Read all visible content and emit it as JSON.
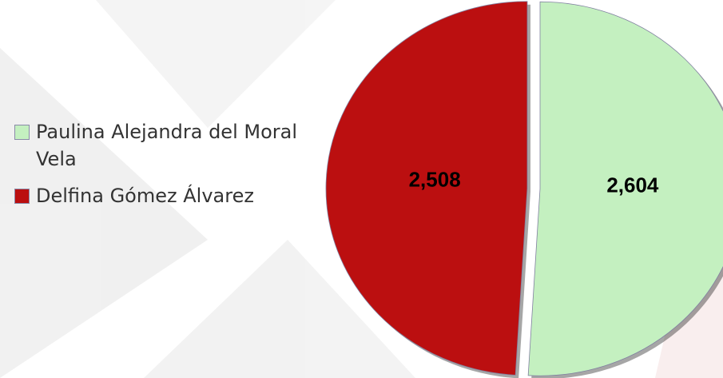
{
  "chart_data": {
    "type": "pie",
    "categories": [
      "Paulina Alejandra del Moral Vela",
      "Delfina Gómez Álvarez"
    ],
    "values": [
      2604,
      2508
    ],
    "value_labels": [
      "2,604",
      "2,508"
    ],
    "colors": [
      "#c4f0c0",
      "#bb0f10"
    ],
    "legend": "left"
  }
}
